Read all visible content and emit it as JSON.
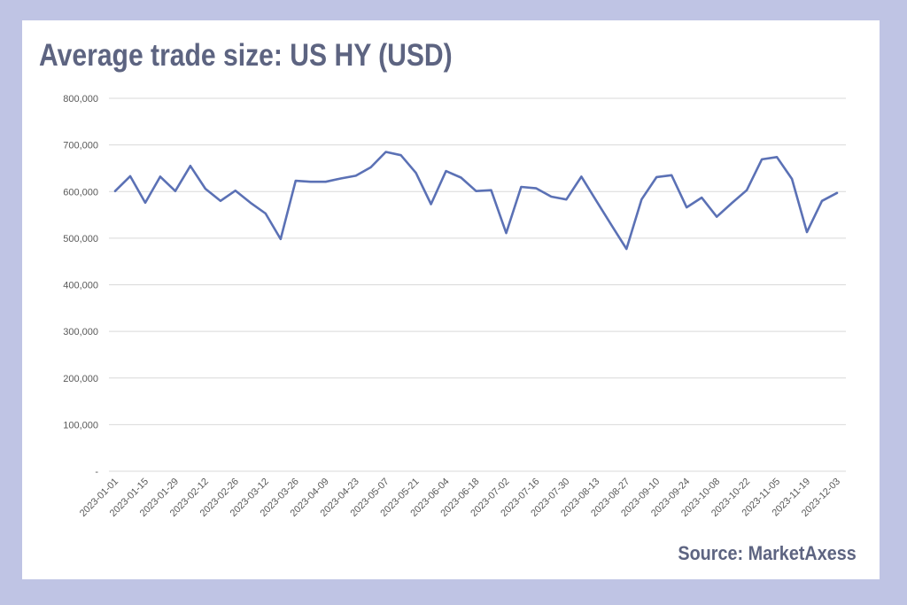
{
  "chart_data": {
    "type": "line",
    "title": "Average trade size: US HY (USD)",
    "source": "Source: MarketAxess",
    "xlabel": "",
    "ylabel": "",
    "ylim": [
      0,
      800000
    ],
    "yticks": [
      0,
      100000,
      200000,
      300000,
      400000,
      500000,
      600000,
      700000,
      800000
    ],
    "ytick_labels": [
      "-",
      "100,000",
      "200,000",
      "300,000",
      "400,000",
      "500,000",
      "600,000",
      "700,000",
      "800,000"
    ],
    "xtick_labels": [
      "2023-01-01",
      "2023-01-15",
      "2023-01-29",
      "2023-02-12",
      "2023-02-26",
      "2023-03-12",
      "2023-03-26",
      "2023-04-09",
      "2023-04-23",
      "2023-05-07",
      "2023-05-21",
      "2023-06-04",
      "2023-06-18",
      "2023-07-02",
      "2023-07-16",
      "2023-07-30",
      "2023-08-13",
      "2023-08-27",
      "2023-09-10",
      "2023-09-24",
      "2023-10-08",
      "2023-10-22",
      "2023-11-05",
      "2023-11-19",
      "2023-12-03"
    ],
    "grid": true,
    "legend": "none",
    "line_color": "#5b71b5",
    "series": [
      {
        "values": [
          601000,
          633000,
          576000,
          632000,
          601000,
          655000,
          606000,
          580000,
          602000,
          576000,
          553000,
          498000,
          623000,
          621000,
          621000,
          628000,
          634000,
          652000,
          685000,
          678000,
          640000,
          573000,
          644000,
          630000,
          601000,
          603000,
          511000,
          610000,
          607000,
          589000,
          583000,
          632000,
          580000,
          528000,
          477000,
          583000,
          631000,
          635000,
          566000,
          587000,
          546000,
          575000,
          603000,
          669000,
          674000,
          627000,
          513000,
          580000,
          597000
        ]
      }
    ]
  }
}
